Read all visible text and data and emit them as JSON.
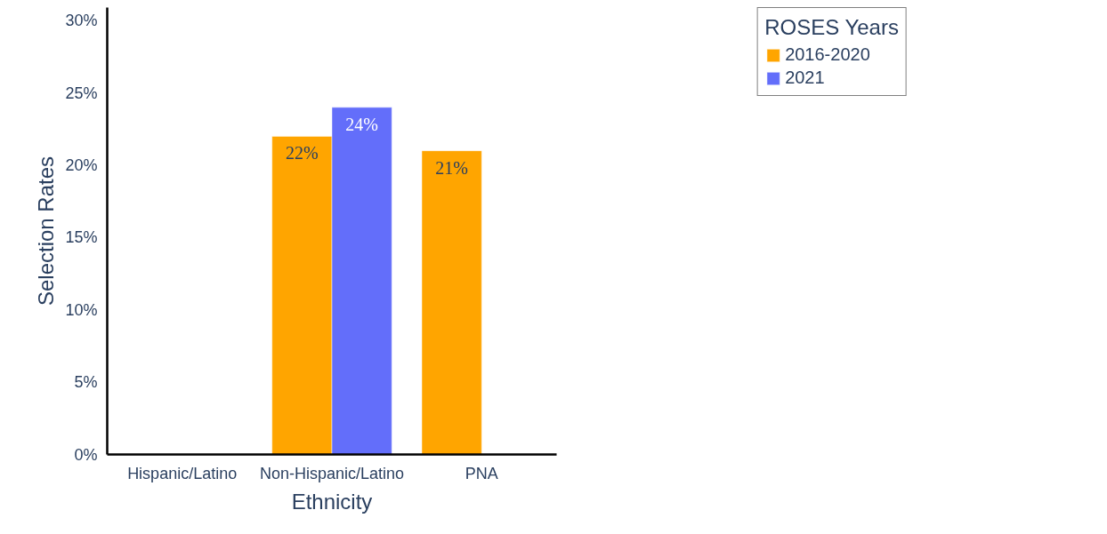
{
  "chart_data": {
    "type": "bar",
    "xlabel": "Ethnicity",
    "ylabel": "Selection Rates",
    "legend_title": "ROSES Years",
    "categories": [
      "Hispanic/Latino",
      "Non-Hispanic/Latino",
      "PNA"
    ],
    "series": [
      {
        "name": "2016-2020",
        "color": "#ffa500",
        "values": [
          null,
          22,
          21
        ],
        "value_labels": [
          null,
          "22%",
          "21%"
        ]
      },
      {
        "name": "2021",
        "color": "#636efa",
        "values": [
          null,
          24,
          null
        ],
        "value_labels": [
          null,
          "24%",
          null
        ]
      }
    ],
    "ylim": [
      0,
      30.9
    ],
    "yticks": [
      {
        "value": 0,
        "label": "0%"
      },
      {
        "value": 5,
        "label": "5%"
      },
      {
        "value": 10,
        "label": "10%"
      },
      {
        "value": 15,
        "label": "15%"
      },
      {
        "value": 20,
        "label": "20%"
      },
      {
        "value": 25,
        "label": "25%"
      },
      {
        "value": 30,
        "label": "30%"
      }
    ],
    "grid": false,
    "legend": "top right"
  }
}
